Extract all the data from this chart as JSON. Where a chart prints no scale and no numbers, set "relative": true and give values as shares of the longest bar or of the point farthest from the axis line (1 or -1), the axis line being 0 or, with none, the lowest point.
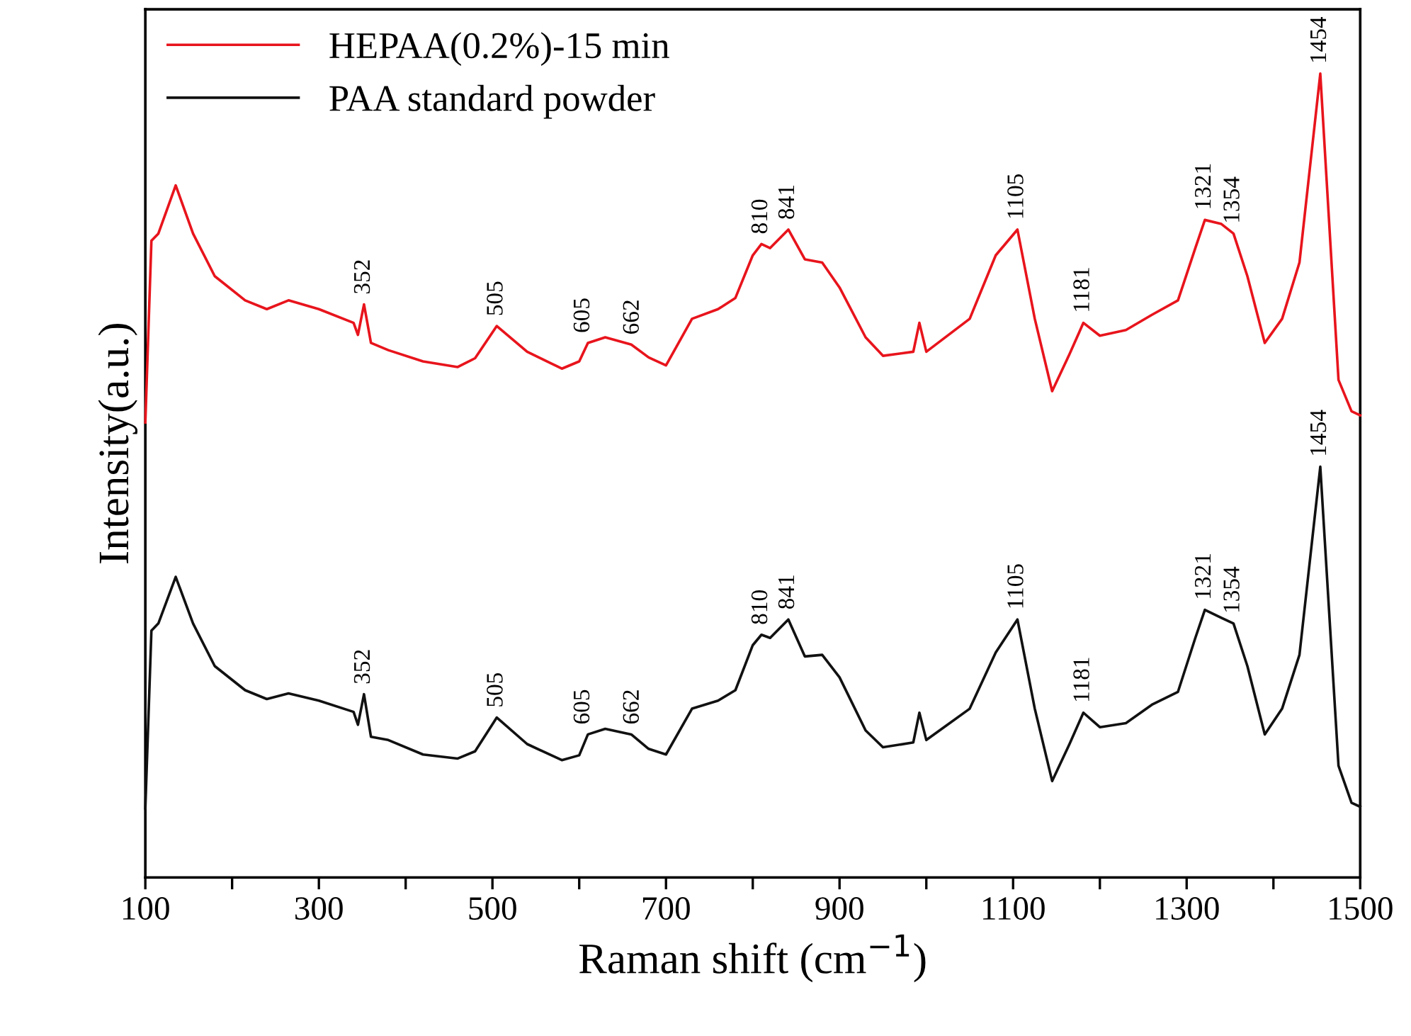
{
  "chart_data": {
    "type": "line",
    "relative": true,
    "xlabel": "Raman shift (cm$^{−1}$)",
    "ylabel": "Intensity(a.u.)",
    "xlim": [
      100,
      1500
    ],
    "xticks": [
      100,
      {
        "value": 200,
        "label": null
      },
      300,
      {
        "value": 400,
        "label": null
      },
      500,
      {
        "value": 600,
        "label": null
      },
      700,
      {
        "value": 800,
        "label": null
      },
      900,
      {
        "value": 1000,
        "label": null
      },
      1100,
      {
        "value": 1200,
        "label": null
      },
      1300,
      {
        "value": 1400,
        "label": null
      },
      1500
    ],
    "tick_labels": "x",
    "legend": "top left",
    "grid": false,
    "line_style": "solid",
    "x": [
      100,
      107,
      115,
      135,
      155,
      180,
      215,
      240,
      265,
      300,
      340,
      345,
      352,
      360,
      380,
      420,
      460,
      480,
      505,
      540,
      580,
      600,
      610,
      630,
      660,
      680,
      700,
      730,
      760,
      780,
      800,
      810,
      820,
      841,
      860,
      880,
      900,
      930,
      950,
      985,
      992,
      1000,
      1050,
      1080,
      1105,
      1125,
      1145,
      1165,
      1181,
      1200,
      1230,
      1260,
      1290,
      1310,
      1321,
      1340,
      1354,
      1370,
      1390,
      1410,
      1430,
      1454,
      1475,
      1490,
      1500
    ],
    "series": [
      {
        "name": "HEPAA(0.2%)-15 min",
        "color": "#e8141c",
        "values": [
          0.566,
          0.792,
          0.801,
          0.861,
          0.801,
          0.748,
          0.718,
          0.707,
          0.718,
          0.707,
          0.69,
          0.675,
          0.713,
          0.665,
          0.656,
          0.642,
          0.635,
          0.646,
          0.686,
          0.654,
          0.633,
          0.642,
          0.665,
          0.672,
          0.663,
          0.647,
          0.637,
          0.695,
          0.707,
          0.721,
          0.774,
          0.788,
          0.783,
          0.806,
          0.769,
          0.765,
          0.734,
          0.672,
          0.649,
          0.654,
          0.69,
          0.654,
          0.695,
          0.774,
          0.806,
          0.695,
          0.605,
          0.651,
          0.69,
          0.674,
          0.681,
          0.7,
          0.718,
          0.783,
          0.818,
          0.813,
          0.801,
          0.748,
          0.665,
          0.695,
          0.765,
          1.0,
          0.619,
          0.58,
          0.575
        ]
      },
      {
        "name": "PAA standard powder",
        "color": "#111111",
        "values": [
          0.086,
          0.307,
          0.316,
          0.374,
          0.316,
          0.263,
          0.233,
          0.222,
          0.229,
          0.22,
          0.206,
          0.19,
          0.228,
          0.175,
          0.171,
          0.153,
          0.148,
          0.157,
          0.199,
          0.166,
          0.146,
          0.152,
          0.178,
          0.185,
          0.178,
          0.16,
          0.153,
          0.21,
          0.22,
          0.233,
          0.289,
          0.302,
          0.298,
          0.321,
          0.275,
          0.277,
          0.249,
          0.183,
          0.162,
          0.168,
          0.205,
          0.171,
          0.21,
          0.28,
          0.321,
          0.21,
          0.12,
          0.166,
          0.205,
          0.187,
          0.192,
          0.215,
          0.231,
          0.298,
          0.333,
          0.323,
          0.316,
          0.263,
          0.178,
          0.21,
          0.277,
          0.511,
          0.139,
          0.093,
          0.088
        ]
      }
    ],
    "annotations": [
      {
        "text": "352",
        "x": 352,
        "y": 0.713
      },
      {
        "text": "505",
        "x": 505,
        "y": 0.686
      },
      {
        "text": "605",
        "x": 605,
        "y": 0.665
      },
      {
        "text": "662",
        "x": 662,
        "y": 0.663
      },
      {
        "text": "810",
        "x": 810,
        "y": 0.788
      },
      {
        "text": "841",
        "x": 841,
        "y": 0.806
      },
      {
        "text": "1105",
        "x": 1105,
        "y": 0.806
      },
      {
        "text": "1181",
        "x": 1181,
        "y": 0.69
      },
      {
        "text": "1321",
        "x": 1321,
        "y": 0.818
      },
      {
        "text": "1354",
        "x": 1354,
        "y": 0.801
      },
      {
        "text": "1454",
        "x": 1454,
        "y": 1.0
      },
      {
        "text": "352",
        "x": 352,
        "y": 0.228
      },
      {
        "text": "505",
        "x": 505,
        "y": 0.199
      },
      {
        "text": "605",
        "x": 605,
        "y": 0.178
      },
      {
        "text": "662",
        "x": 662,
        "y": 0.178
      },
      {
        "text": "810",
        "x": 810,
        "y": 0.302
      },
      {
        "text": "841",
        "x": 841,
        "y": 0.321
      },
      {
        "text": "1105",
        "x": 1105,
        "y": 0.321
      },
      {
        "text": "1181",
        "x": 1181,
        "y": 0.205
      },
      {
        "text": "1321",
        "x": 1321,
        "y": 0.333
      },
      {
        "text": "1354",
        "x": 1354,
        "y": 0.316
      },
      {
        "text": "1454",
        "x": 1454,
        "y": 0.511
      }
    ]
  }
}
